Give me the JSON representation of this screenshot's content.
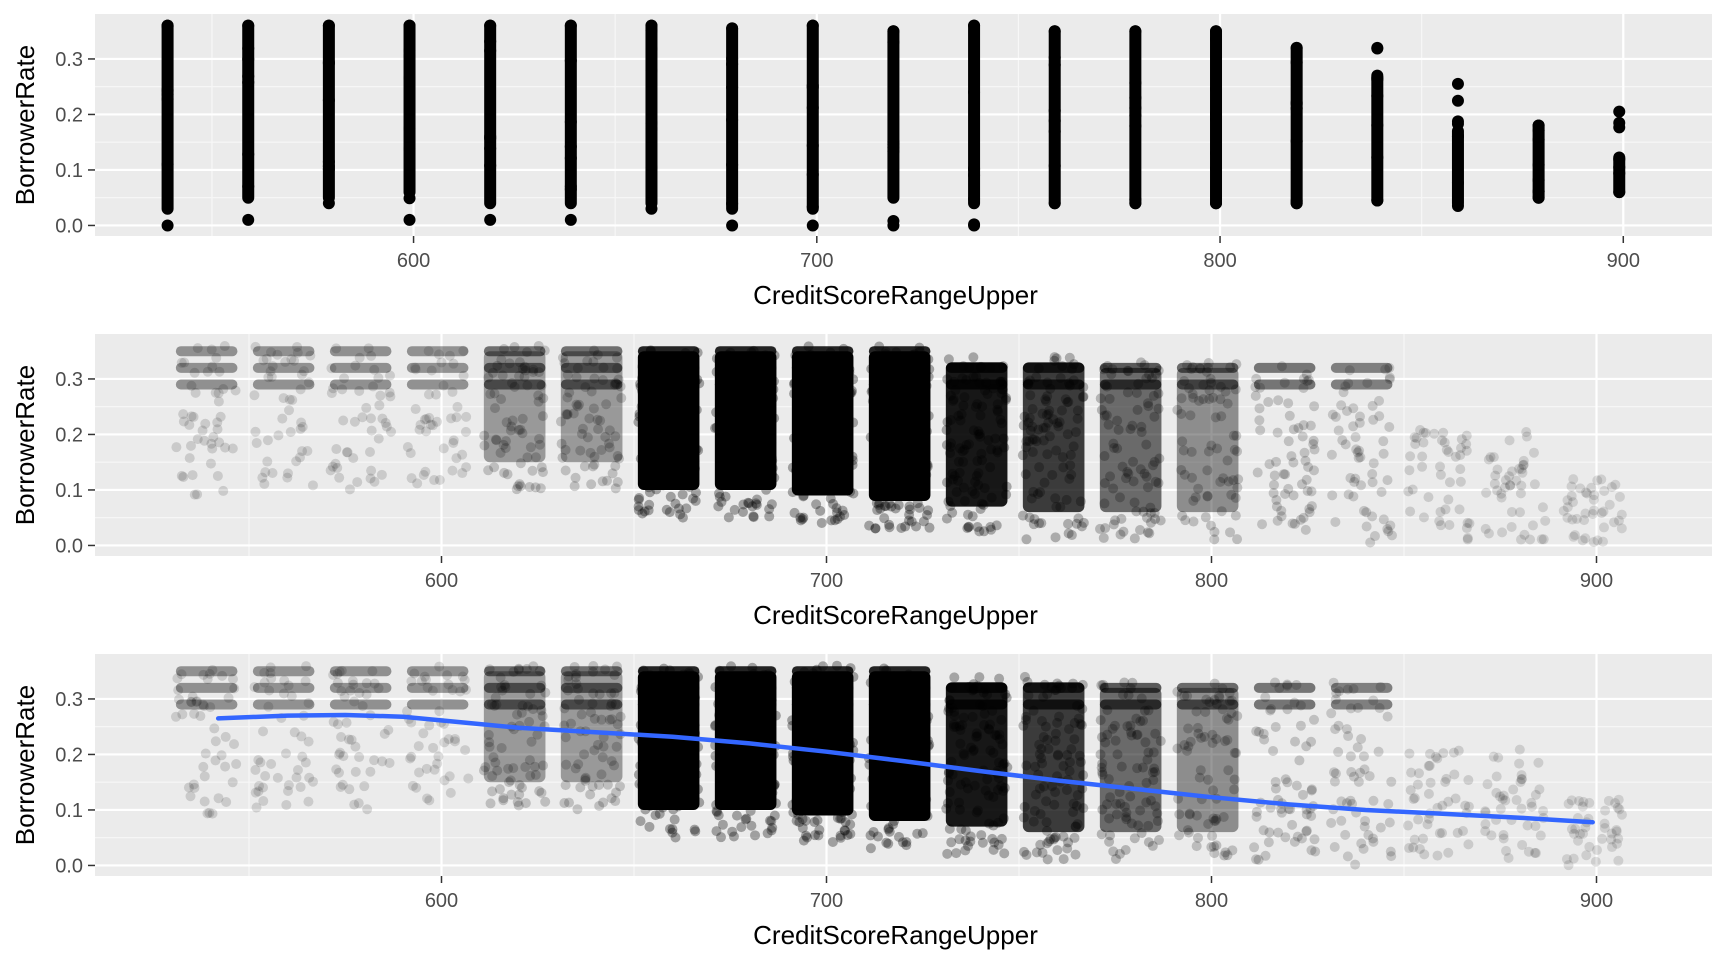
{
  "chart_data": [
    {
      "type": "scatter",
      "title": "",
      "xlabel": "CreditScoreRangeUpper",
      "ylabel": "BorrowerRate",
      "xlim": [
        521,
        922
      ],
      "ylim": [
        -0.019,
        0.381
      ],
      "x_ticks": [
        600,
        700,
        800,
        900
      ],
      "x_tick_labels": [
        "600",
        "700",
        "800",
        "900"
      ],
      "y_ticks": [
        0.0,
        0.1,
        0.2,
        0.3
      ],
      "y_tick_labels": [
        "0.0",
        "0.1",
        "0.2",
        "0.3"
      ],
      "grid": true,
      "jitter": false,
      "alpha": 1,
      "point_color": "#000000",
      "series": [
        {
          "x": [
            539,
            559,
            579,
            599,
            619,
            639,
            659,
            679,
            699,
            719,
            739,
            759,
            779,
            799,
            819,
            839,
            859,
            879,
            899
          ],
          "y_max": [
            0.36,
            0.36,
            0.36,
            0.36,
            0.36,
            0.36,
            0.36,
            0.355,
            0.36,
            0.35,
            0.36,
            0.35,
            0.35,
            0.35,
            0.32,
            0.32,
            0.255,
            0.18,
            0.205
          ],
          "y_min": [
            0.0,
            0.01,
            0.04,
            0.01,
            0.01,
            0.01,
            0.03,
            0.0,
            0.0,
            0.0,
            0.0,
            0.04,
            0.04,
            0.04,
            0.04,
            0.045,
            0.035,
            0.05,
            0.06
          ],
          "y_dense_low": [
            0.03,
            0.05,
            0.05,
            0.06,
            0.04,
            0.04,
            0.04,
            0.03,
            0.03,
            0.05,
            0.04,
            0.04,
            0.04,
            0.04,
            0.04,
            0.045,
            0.04,
            0.05,
            0.06
          ],
          "y_dense_high": [
            0.36,
            0.36,
            0.36,
            0.36,
            0.36,
            0.36,
            0.36,
            0.355,
            0.36,
            0.35,
            0.36,
            0.35,
            0.35,
            0.35,
            0.32,
            0.27,
            0.17,
            0.18,
            0.12
          ]
        }
      ]
    },
    {
      "type": "scatter",
      "title": "",
      "xlabel": "CreditScoreRangeUpper",
      "ylabel": "BorrowerRate",
      "xlim": [
        510,
        930
      ],
      "ylim": [
        -0.019,
        0.381
      ],
      "x_ticks": [
        600,
        700,
        800,
        900
      ],
      "x_tick_labels": [
        "600",
        "700",
        "800",
        "900"
      ],
      "y_ticks": [
        0.0,
        0.1,
        0.2,
        0.3
      ],
      "y_tick_labels": [
        "0.0",
        "0.1",
        "0.2",
        "0.3"
      ],
      "grid": true,
      "jitter": true,
      "alpha": 0.05,
      "point_color": "#000000",
      "series": [
        {
          "x": [
            539,
            559,
            579,
            599,
            619,
            639,
            659,
            679,
            699,
            719,
            739,
            759,
            779,
            799,
            819,
            839,
            859,
            879,
            899
          ],
          "y_low": [
            0.14,
            0.15,
            0.15,
            0.16,
            0.15,
            0.15,
            0.1,
            0.1,
            0.09,
            0.08,
            0.07,
            0.06,
            0.06,
            0.06,
            0.06,
            0.05,
            0.06,
            0.06,
            0.05
          ],
          "y_high": [
            0.35,
            0.35,
            0.35,
            0.35,
            0.35,
            0.35,
            0.35,
            0.35,
            0.35,
            0.35,
            0.33,
            0.33,
            0.32,
            0.32,
            0.32,
            0.32,
            0.2,
            0.2,
            0.11
          ],
          "density": [
            0.08,
            0.06,
            0.08,
            0.06,
            0.35,
            0.35,
            1.0,
            1.0,
            1.0,
            1.0,
            0.9,
            0.75,
            0.55,
            0.4,
            0.3,
            0.22,
            0.08,
            0.05,
            0.01
          ]
        }
      ]
    },
    {
      "type": "scatter",
      "title": "",
      "xlabel": "CreditScoreRangeUpper",
      "ylabel": "BorrowerRate",
      "xlim": [
        510,
        930
      ],
      "ylim": [
        -0.019,
        0.381
      ],
      "x_ticks": [
        600,
        700,
        800,
        900
      ],
      "x_tick_labels": [
        "600",
        "700",
        "800",
        "900"
      ],
      "y_ticks": [
        0.0,
        0.1,
        0.2,
        0.3
      ],
      "y_tick_labels": [
        "0.0",
        "0.1",
        "0.2",
        "0.3"
      ],
      "grid": true,
      "jitter": true,
      "alpha": 0.05,
      "point_color": "#000000",
      "series": [
        {
          "x": [
            539,
            559,
            579,
            599,
            619,
            639,
            659,
            679,
            699,
            719,
            739,
            759,
            779,
            799,
            819,
            839,
            859,
            879,
            899
          ],
          "y_low": [
            0.14,
            0.15,
            0.15,
            0.16,
            0.15,
            0.15,
            0.1,
            0.1,
            0.09,
            0.08,
            0.07,
            0.06,
            0.06,
            0.06,
            0.06,
            0.05,
            0.06,
            0.06,
            0.05
          ],
          "y_high": [
            0.35,
            0.35,
            0.35,
            0.35,
            0.35,
            0.35,
            0.35,
            0.35,
            0.35,
            0.35,
            0.33,
            0.33,
            0.32,
            0.32,
            0.32,
            0.32,
            0.2,
            0.2,
            0.11
          ],
          "density": [
            0.08,
            0.06,
            0.08,
            0.06,
            0.35,
            0.35,
            1.0,
            1.0,
            1.0,
            1.0,
            0.9,
            0.75,
            0.55,
            0.4,
            0.3,
            0.22,
            0.08,
            0.05,
            0.01
          ]
        }
      ],
      "smooth_line": {
        "color": "#3366ff",
        "x": [
          542,
          560,
          575,
          590,
          605,
          620,
          640,
          660,
          680,
          700,
          720,
          740,
          760,
          780,
          800,
          820,
          840,
          860,
          880,
          899
        ],
        "y": [
          0.265,
          0.27,
          0.271,
          0.268,
          0.258,
          0.248,
          0.24,
          0.232,
          0.22,
          0.205,
          0.188,
          0.17,
          0.153,
          0.138,
          0.123,
          0.11,
          0.1,
          0.093,
          0.086,
          0.078
        ]
      }
    }
  ]
}
